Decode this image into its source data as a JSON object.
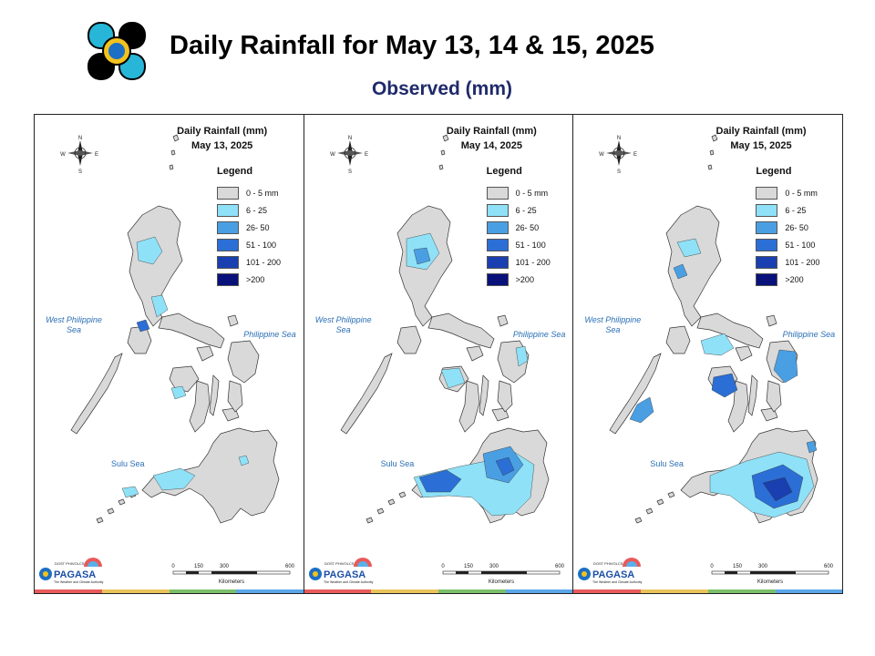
{
  "header": {
    "title": "Daily Rainfall for May 13, 14 & 15, 2025",
    "subtitle": "Observed (mm)"
  },
  "colors": {
    "c0": "#d9d9d9",
    "c1": "#8fe1f7",
    "c2": "#4a9fe3",
    "c3": "#2b6fd6",
    "c4": "#1a3fb0",
    "c5": "#08127a",
    "sea_label": "#2a6fb5",
    "stripe": [
      "#e85a5a",
      "#e8c45a",
      "#7bbf6a",
      "#5aa6e8"
    ]
  },
  "panels": [
    {
      "heading": "Daily Rainfall (mm)",
      "date": "May 13, 2025",
      "legend_title": "Legend",
      "legend": [
        "0 - 5 mm",
        "6 - 25",
        "26- 50",
        "51 - 100",
        "101 - 200",
        ">200"
      ],
      "west_sea": "West Philippine Sea",
      "philippine_sea": "Philippine Sea",
      "sulu_sea": "Sulu Sea",
      "scale_ticks": [
        "0",
        "150",
        "300",
        "600"
      ],
      "scale_unit": "Kilometers",
      "compass": [
        "N",
        "S",
        "E",
        "W"
      ],
      "brand": "PAGASA",
      "brand_top": "DOST  PHIVOLCS",
      "brand_sub": "The Weather and Climate Authority"
    },
    {
      "heading": "Daily Rainfall (mm)",
      "date": "May 14, 2025",
      "legend_title": "Legend",
      "legend": [
        "0 - 5 mm",
        "6 - 25",
        "26- 50",
        "51 - 100",
        "101 - 200",
        ">200"
      ],
      "west_sea": "West Philippine Sea",
      "philippine_sea": "Philippine Sea",
      "sulu_sea": "Sulu Sea",
      "scale_ticks": [
        "0",
        "150",
        "300",
        "600"
      ],
      "scale_unit": "Kilometers",
      "compass": [
        "N",
        "S",
        "E",
        "W"
      ],
      "brand": "PAGASA",
      "brand_top": "DOST  PHIVOLCS",
      "brand_sub": "The Weather and Climate Authority"
    },
    {
      "heading": "Daily Rainfall (mm)",
      "date": "May 15, 2025",
      "legend_title": "Legend",
      "legend": [
        "0 - 5 mm",
        "6 - 25",
        "26- 50",
        "51 - 100",
        "101 - 200",
        ">200"
      ],
      "west_sea": "West Philippine Sea",
      "philippine_sea": "Philippine Sea",
      "sulu_sea": "Sulu Sea",
      "scale_ticks": [
        "0",
        "150",
        "300",
        "600"
      ],
      "scale_unit": "Kilometers",
      "compass": [
        "N",
        "S",
        "E",
        "W"
      ],
      "brand": "PAGASA",
      "brand_top": "DOST  PHIVOLCS",
      "brand_sub": "The Weather and Climate Authority"
    }
  ]
}
